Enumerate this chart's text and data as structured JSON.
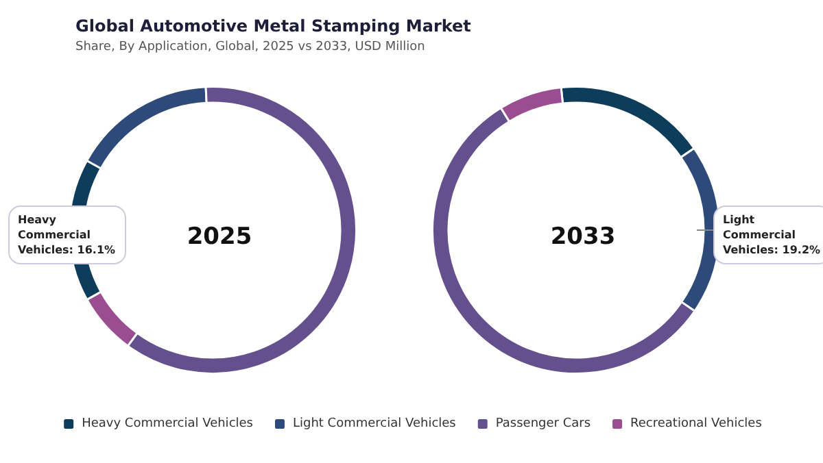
{
  "chart_data": {
    "type": "donut",
    "title": "Global Automotive Metal Stamping Market",
    "subtitle": "Share, By Application, Global, 2025 vs 2033, USD Million",
    "categories": [
      "Heavy Commercial Vehicles",
      "Light Commercial Vehicles",
      "Passenger Cars",
      "Recreational Vehicles"
    ],
    "colors": [
      "#0d3d5a",
      "#2e4a7a",
      "#65508e",
      "#9b4d91"
    ],
    "series": [
      {
        "name": "2025",
        "values": [
          16.1,
          16.2,
          60.8,
          6.9
        ]
      },
      {
        "name": "2033",
        "values": [
          17.0,
          19.2,
          56.7,
          7.1
        ]
      }
    ],
    "annotations": [
      "Heavy Commercial Vehicles: 16.1%",
      "Light Commercial Vehicles: 19.2%"
    ],
    "legend": "bottom"
  }
}
